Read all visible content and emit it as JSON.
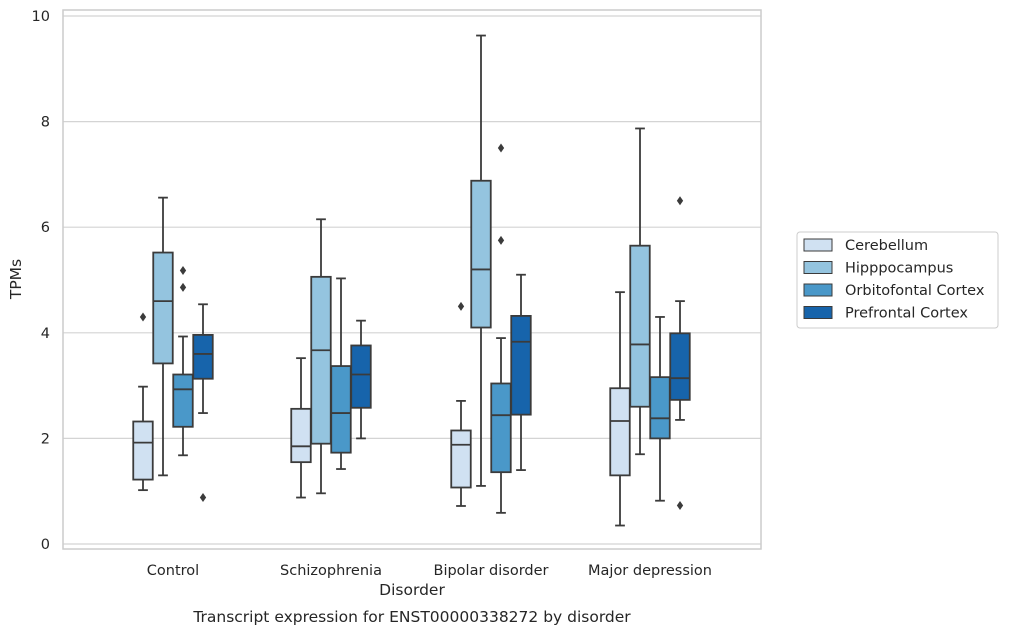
{
  "caption": "Transcript expression for ENST00000338272 by disorder",
  "chart_data": {
    "type": "box",
    "title": "",
    "xlabel": "Disorder",
    "ylabel": "TPMs",
    "ylim": [
      0,
      10
    ],
    "yticks": [
      "0",
      "2",
      "4",
      "6",
      "8",
      "10"
    ],
    "grid": true,
    "legend_position": "right",
    "categories": [
      "Control",
      "Schizophrenia",
      "Bipolar disorder",
      "Major depression"
    ],
    "series": [
      {
        "name": "Cerebellum",
        "color": "#d0e1f2",
        "boxes": [
          {
            "whisker_low": 1.02,
            "q1": 1.22,
            "median": 1.92,
            "q3": 2.32,
            "whisker_high": 2.98,
            "outliers": [
              4.3
            ]
          },
          {
            "whisker_low": 0.88,
            "q1": 1.55,
            "median": 1.85,
            "q3": 2.56,
            "whisker_high": 3.52,
            "outliers": []
          },
          {
            "whisker_low": 0.72,
            "q1": 1.07,
            "median": 1.88,
            "q3": 2.15,
            "whisker_high": 2.71,
            "outliers": [
              4.5
            ]
          },
          {
            "whisker_low": 0.35,
            "q1": 1.3,
            "median": 2.33,
            "q3": 2.95,
            "whisker_high": 4.77,
            "outliers": []
          }
        ]
      },
      {
        "name": "Hipppocampus",
        "color": "#94c4df",
        "boxes": [
          {
            "whisker_low": 1.3,
            "q1": 3.42,
            "median": 4.6,
            "q3": 5.52,
            "whisker_high": 6.56,
            "outliers": []
          },
          {
            "whisker_low": 0.96,
            "q1": 1.9,
            "median": 3.67,
            "q3": 5.06,
            "whisker_high": 6.15,
            "outliers": []
          },
          {
            "whisker_low": 1.1,
            "q1": 4.1,
            "median": 5.2,
            "q3": 6.88,
            "whisker_high": 9.63,
            "outliers": []
          },
          {
            "whisker_low": 1.7,
            "q1": 2.6,
            "median": 3.78,
            "q3": 5.65,
            "whisker_high": 7.87,
            "outliers": []
          }
        ]
      },
      {
        "name": "Orbitofontal Cortex",
        "color": "#4a98c9",
        "boxes": [
          {
            "whisker_low": 1.68,
            "q1": 2.22,
            "median": 2.93,
            "q3": 3.21,
            "whisker_high": 3.93,
            "outliers": [
              5.18,
              4.86
            ]
          },
          {
            "whisker_low": 1.42,
            "q1": 1.73,
            "median": 2.48,
            "q3": 3.37,
            "whisker_high": 5.03,
            "outliers": []
          },
          {
            "whisker_low": 0.59,
            "q1": 1.36,
            "median": 2.44,
            "q3": 3.04,
            "whisker_high": 3.9,
            "outliers": [
              7.5,
              5.75
            ]
          },
          {
            "whisker_low": 0.82,
            "q1": 2.0,
            "median": 2.38,
            "q3": 3.16,
            "whisker_high": 4.3,
            "outliers": []
          }
        ]
      },
      {
        "name": "Prefrontal Cortex",
        "color": "#1764ab",
        "boxes": [
          {
            "whisker_low": 2.48,
            "q1": 3.13,
            "median": 3.6,
            "q3": 3.96,
            "whisker_high": 4.54,
            "outliers": [
              0.88
            ]
          },
          {
            "whisker_low": 2.0,
            "q1": 2.58,
            "median": 3.21,
            "q3": 3.76,
            "whisker_high": 4.23,
            "outliers": []
          },
          {
            "whisker_low": 1.4,
            "q1": 2.45,
            "median": 3.83,
            "q3": 4.32,
            "whisker_high": 5.1,
            "outliers": []
          },
          {
            "whisker_low": 2.35,
            "q1": 2.73,
            "median": 3.14,
            "q3": 3.99,
            "whisker_high": 4.6,
            "outliers": [
              6.5,
              0.73
            ]
          }
        ]
      }
    ]
  }
}
